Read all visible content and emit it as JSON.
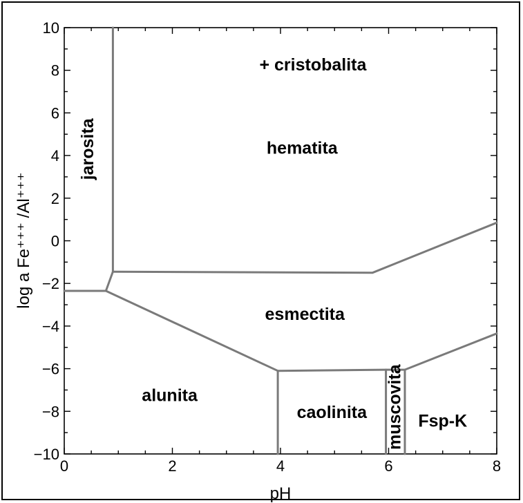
{
  "chart_data": {
    "type": "line",
    "xlabel": "pH",
    "ylabel": "log a Fe⁺⁺⁺ /Al⁺⁺⁺",
    "xlim": [
      0,
      8
    ],
    "ylim": [
      -10,
      10
    ],
    "xticks": [
      0,
      2,
      4,
      6,
      8
    ],
    "yticks": [
      -10,
      -8,
      -6,
      -4,
      -2,
      0,
      2,
      4,
      6,
      8,
      10
    ],
    "xtick_labels": [
      "0",
      "2",
      "4",
      "6",
      "8"
    ],
    "ytick_labels": [
      "−10",
      "−8",
      "−6",
      "−4",
      "−2",
      "0",
      "2",
      "4",
      "6",
      "8",
      "10"
    ],
    "grid": false,
    "boundary_color": "#7a7a7a",
    "boundaries": [
      {
        "points": [
          [
            0.9,
            10
          ],
          [
            0.9,
            -1.45
          ]
        ]
      },
      {
        "points": [
          [
            0.9,
            -1.45
          ],
          [
            5.7,
            -1.5
          ],
          [
            8,
            0.85
          ]
        ]
      },
      {
        "points": [
          [
            0.9,
            -1.45
          ],
          [
            0.77,
            -2.35
          ]
        ]
      },
      {
        "points": [
          [
            0,
            -2.35
          ],
          [
            0.77,
            -2.35
          ]
        ]
      },
      {
        "points": [
          [
            0.77,
            -2.35
          ],
          [
            3.95,
            -6.1
          ],
          [
            5.95,
            -6.05
          ],
          [
            6.3,
            -6.05
          ],
          [
            8,
            -4.35
          ]
        ]
      },
      {
        "points": [
          [
            3.95,
            -6.1
          ],
          [
            3.95,
            -10
          ]
        ]
      },
      {
        "points": [
          [
            5.95,
            -6.05
          ],
          [
            5.95,
            -10
          ]
        ]
      },
      {
        "points": [
          [
            6.3,
            -6.05
          ],
          [
            6.3,
            -10
          ]
        ]
      }
    ],
    "regions": [
      {
        "label": "+ cristobalita",
        "x": 4.6,
        "y": 8.2,
        "rotate": 0
      },
      {
        "label": "hematita",
        "x": 4.4,
        "y": 4.3,
        "rotate": 0
      },
      {
        "label": "jarosita",
        "x": 0.45,
        "y": 4.3,
        "rotate": -90
      },
      {
        "label": "esmectita",
        "x": 4.45,
        "y": -3.5,
        "rotate": 0
      },
      {
        "label": "alunita",
        "x": 1.95,
        "y": -7.3,
        "rotate": 0
      },
      {
        "label": "caolinita",
        "x": 4.95,
        "y": -8.1,
        "rotate": 0
      },
      {
        "label": "muscovita",
        "x": 6.13,
        "y": -7.8,
        "rotate": -90
      },
      {
        "label": "Fsp-K",
        "x": 7.0,
        "y": -8.5,
        "rotate": 0
      }
    ]
  }
}
